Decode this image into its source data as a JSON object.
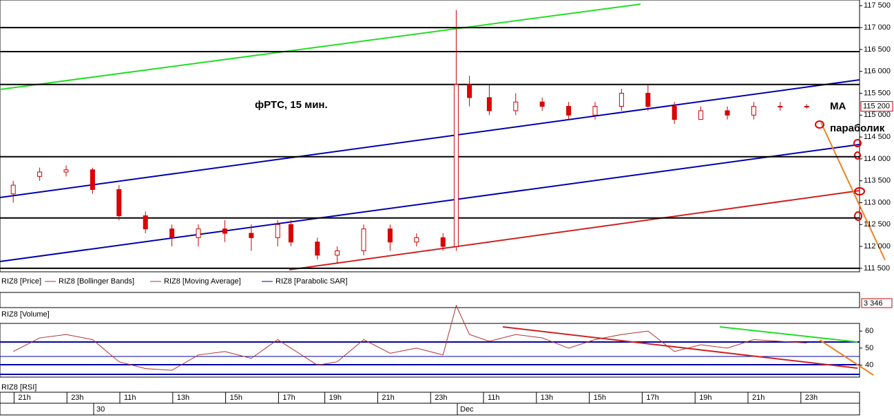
{
  "chart_data": {
    "type": "candlestick",
    "title": "фРТС, 15 мин.",
    "annotations": [
      "МА",
      "параболик"
    ],
    "legend": [
      "RIZ8 [Price]",
      "RIZ8 [Bollinger Bands]",
      "RIZ8 [Moving Average]",
      "RIZ8 [Parabolic SAR]"
    ],
    "up_color": "#ffffff",
    "down_color": "#e00000",
    "edge_color": "#cc0000",
    "x": [
      2,
      6,
      10,
      14,
      18,
      22,
      26,
      30,
      34,
      38,
      42,
      44,
      48,
      51,
      55,
      59,
      63,
      67,
      69,
      71,
      74,
      78,
      82,
      86,
      90,
      94,
      98,
      102,
      106,
      110,
      114,
      118,
      122
    ],
    "open": [
      113200,
      113600,
      113700,
      113750,
      113300,
      112700,
      112400,
      112200,
      112400,
      112300,
      112200,
      112500,
      112100,
      111800,
      111900,
      112400,
      112100,
      112200,
      112000,
      115700,
      115400,
      115100,
      115300,
      115200,
      115000,
      115200,
      115500,
      115200,
      114900,
      115100,
      115000,
      115200,
      115200
    ],
    "high": [
      113500,
      113800,
      113850,
      113800,
      113400,
      112800,
      112500,
      112500,
      112600,
      112500,
      112600,
      112600,
      112200,
      112000,
      112500,
      112500,
      112300,
      112300,
      117400,
      115900,
      115700,
      115500,
      115400,
      115300,
      115300,
      115600,
      115700,
      115300,
      115200,
      115200,
      115300,
      115300,
      115250
    ],
    "low": [
      113000,
      113500,
      113600,
      113200,
      112600,
      112300,
      112000,
      112000,
      112100,
      111900,
      112000,
      112000,
      111700,
      111600,
      111800,
      111900,
      112000,
      111900,
      111900,
      115200,
      115000,
      115000,
      115100,
      114900,
      114900,
      115100,
      115100,
      114800,
      114900,
      114900,
      114900,
      115100,
      115150
    ],
    "close": [
      113400,
      113700,
      113750,
      113300,
      112700,
      112400,
      112200,
      112400,
      112300,
      112200,
      112500,
      112100,
      111800,
      111900,
      112400,
      112100,
      112200,
      112000,
      115700,
      115400,
      115100,
      115300,
      115200,
      115000,
      115200,
      115500,
      115200,
      114900,
      115100,
      115000,
      115200,
      115200,
      115200
    ],
    "xlim": [
      0,
      130
    ],
    "xticks": [
      {
        "value": 4,
        "label": "21h"
      },
      {
        "value": 12,
        "label": "23h"
      },
      {
        "value": 20,
        "label": "11h"
      },
      {
        "value": 28,
        "label": "13h"
      },
      {
        "value": 36,
        "label": "15h"
      },
      {
        "value": 44,
        "label": "17h"
      },
      {
        "value": 51,
        "label": "19h"
      },
      {
        "value": 59,
        "label": "21h"
      },
      {
        "value": 67,
        "label": "23h"
      },
      {
        "value": 75,
        "label": "11h"
      },
      {
        "value": 83,
        "label": "13h"
      },
      {
        "value": 91,
        "label": "15h"
      },
      {
        "value": 99,
        "label": "17h"
      },
      {
        "value": 107,
        "label": "19h"
      },
      {
        "value": 115,
        "label": "21h"
      },
      {
        "value": 123,
        "label": "23h"
      }
    ],
    "date_ticks": [
      {
        "value": 15,
        "label": "30"
      },
      {
        "value": 70,
        "label": "Dec"
      }
    ],
    "ylim": [
      111420,
      117630
    ],
    "yticks": [
      {
        "value": 111500,
        "label": "111 500"
      },
      {
        "value": 112000,
        "label": "112 000"
      },
      {
        "value": 112500,
        "label": "112 500"
      },
      {
        "value": 113000,
        "label": "113 000"
      },
      {
        "value": 113500,
        "label": "113 500"
      },
      {
        "value": 114000,
        "label": "114 000"
      },
      {
        "value": 114500,
        "label": "114 500"
      },
      {
        "value": 115000,
        "label": "115 000"
      },
      {
        "value": 115500,
        "label": "115 500"
      },
      {
        "value": 116000,
        "label": "116 000"
      },
      {
        "value": 116500,
        "label": "116 500"
      },
      {
        "value": 117000,
        "label": "117 000"
      },
      {
        "value": 117500,
        "label": "117 500"
      }
    ],
    "levels": [
      117000,
      116450,
      115700,
      114050,
      112650,
      111500
    ],
    "last_price": {
      "value": 115200,
      "label": "115 200"
    },
    "volume": {
      "label": "RIZ8 [Volume]",
      "last": {
        "value": 3346,
        "label": "3 346"
      }
    },
    "rsi": {
      "label": "RIZ8 [RSI]",
      "color": "#b03030",
      "values": [
        48,
        56,
        58,
        55,
        42,
        38,
        37,
        46,
        48,
        44,
        55,
        50,
        40,
        42,
        55,
        47,
        50,
        46,
        75,
        58,
        54,
        58,
        56,
        50,
        55,
        58,
        60,
        48,
        52,
        50,
        55,
        54,
        53
      ],
      "ylim": [
        33,
        64.5
      ],
      "yticks": [
        40,
        50,
        60
      ]
    }
  }
}
